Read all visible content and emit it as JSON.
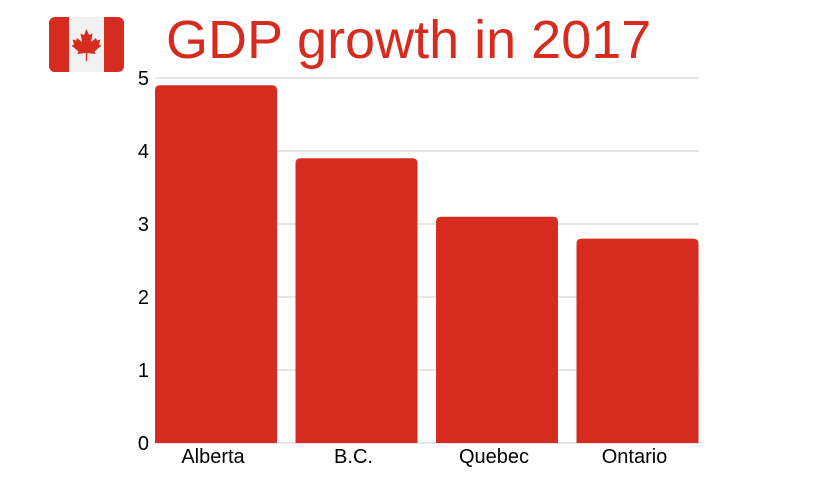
{
  "title": "GDP growth in 2017",
  "colors": {
    "bar": "#d62b1f",
    "title": "#d62b1f",
    "flag_red": "#d62b1f",
    "flag_white": "#f2f2f2",
    "grid": "#cccccc"
  },
  "icons": {
    "flag": "canada-flag-icon"
  },
  "chart_data": {
    "type": "bar",
    "title": "GDP growth in 2017",
    "categories": [
      "Alberta",
      "B.C.",
      "Quebec",
      "Ontario"
    ],
    "values": [
      4.9,
      3.9,
      3.1,
      2.8
    ],
    "ylim": [
      0,
      5
    ],
    "yticks": [
      "0",
      "1",
      "2",
      "3",
      "4",
      "5"
    ],
    "grid": true,
    "xlabel": "",
    "ylabel": ""
  }
}
